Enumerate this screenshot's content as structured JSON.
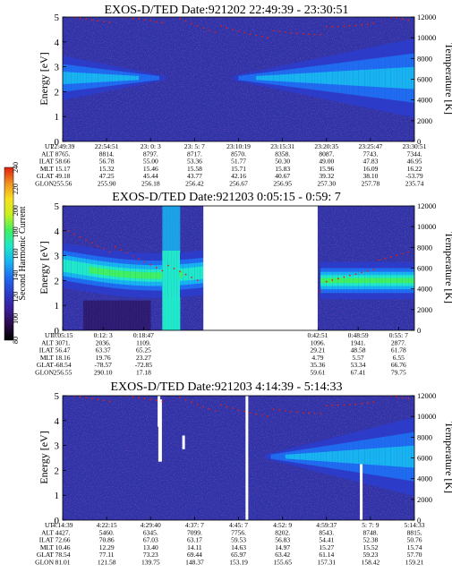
{
  "colors": {
    "background": "#2e33a8",
    "scale": [
      "#000000",
      "#2a0a4a",
      "#3b1f9a",
      "#2c3cc8",
      "#1f6cf0",
      "#18b4f0",
      "#20e8c8",
      "#40f060",
      "#c8f020",
      "#f8e020",
      "#f09020",
      "#e02010"
    ]
  },
  "colorbar": {
    "label": "Second Harmonic Current",
    "ticks": [
      "80",
      "100",
      "120",
      "140",
      "160",
      "180",
      "200",
      "220",
      "240"
    ]
  },
  "chart_data": [
    {
      "type": "heatmap",
      "title": "EXOS-D/TED   Date:921202  22:49:39 - 23:30:51",
      "ylabel": "Energy [eV]",
      "y2label": "Temperature [K]",
      "ylim": [
        0,
        5
      ],
      "y2lim": [
        0,
        12000
      ],
      "yticks": [
        "0",
        "1",
        "2",
        "3",
        "4",
        "5"
      ],
      "y2ticks": [
        "0",
        "2000",
        "4000",
        "6000",
        "8000",
        "10000",
        "12000"
      ],
      "gaps": [],
      "band": "ends",
      "ephemeris": {
        "rows": [
          "UT",
          "ALT",
          "ILAT",
          "MLT",
          "GLAT",
          "GLON"
        ],
        "columns": [
          [
            "22:49:39",
            "8765.",
            "58.66",
            "15.17",
            "49.18",
            "255.56"
          ],
          [
            "22:54:51",
            "8814.",
            "56.78",
            "15.32",
            "47.25",
            "255.90"
          ],
          [
            "23: 0: 3",
            "8797.",
            "55.00",
            "15.46",
            "45.44",
            "256.18"
          ],
          [
            "23: 5: 7",
            "8717.",
            "53.36",
            "15.58",
            "43.77",
            "256.42"
          ],
          [
            "23:10:19",
            "8570.",
            "51.77",
            "15.71",
            "42.16",
            "256.67"
          ],
          [
            "23:15:31",
            "8358.",
            "50.30",
            "15.83",
            "40.67",
            "256.95"
          ],
          [
            "23:20:35",
            "8087.",
            "49.00",
            "15.96",
            "39.32",
            "257.30"
          ],
          [
            "23:25:47",
            "7743.",
            "47.83",
            "16.09",
            "38.10",
            "257.78"
          ],
          [
            "23:30:51",
            "7344.",
            "46.95",
            "16.22",
            "-53.79",
            "235.74"
          ]
        ]
      }
    },
    {
      "type": "heatmap",
      "title": "EXOS-D/TED   Date:921203  0:05:15 - 0:59: 7",
      "ylabel": "Energy [eV]",
      "y2label": "Temperature [K]",
      "ylim": [
        0,
        5
      ],
      "y2lim": [
        0,
        12000
      ],
      "yticks": [
        "0",
        "1",
        "2",
        "3",
        "4",
        "5"
      ],
      "y2ticks": [
        "0",
        "2000",
        "4000",
        "6000",
        "8000",
        "10000",
        "12000"
      ],
      "gaps": [
        [
          0.4,
          0.725
        ]
      ],
      "band": "middle",
      "ephemeris": {
        "rows": [
          "UT",
          "ALT",
          "ILAT",
          "MLT",
          "GLAT",
          "GLON"
        ],
        "columns": [
          [
            "0:05:15",
            "3071.",
            "56.47",
            "18.16",
            "-68.54",
            "256.55"
          ],
          [
            "0:12: 3",
            "2036.",
            "63.37",
            "19.76",
            "-78.57",
            "290.10"
          ],
          [
            "0:18:47",
            "1109.",
            "65.25",
            "23.27",
            "-72.85",
            "17.18"
          ],
          [
            "0:42:51",
            "1096.",
            "29.21",
            "4.79",
            "35.36",
            "59.61"
          ],
          [
            "0:48:59",
            "1941.",
            "48.58",
            "5.57",
            "53.34",
            "67.41"
          ],
          [
            "0:55: 7",
            "2877.",
            "61.78",
            "6.55",
            "66.76",
            "79.75"
          ]
        ]
      }
    },
    {
      "type": "heatmap",
      "title": "EXOS-D/TED   Date:921203  4:14:39 - 5:14:33",
      "ylabel": "Energy [eV]",
      "y2label": "Temperature [K]",
      "ylim": [
        0,
        5
      ],
      "y2lim": [
        0,
        12000
      ],
      "yticks": [
        "0",
        "1",
        "2",
        "3",
        "4",
        "5"
      ],
      "y2ticks": [
        "0",
        "2000",
        "4000",
        "6000",
        "8000",
        "10000",
        "12000"
      ],
      "gaps": [],
      "band": "end",
      "ephemeris": {
        "rows": [
          "UT",
          "ALT",
          "ILAT",
          "MLT",
          "GLAT",
          "GLON"
        ],
        "columns": [
          [
            "4:14:39",
            "4427.",
            "72.66",
            "10.46",
            "78.54",
            "81.01"
          ],
          [
            "4:22:15",
            "5460.",
            "70.86",
            "12.29",
            "77.11",
            "121.58"
          ],
          [
            "4:29:40",
            "6345.",
            "67.03",
            "13.40",
            "73.23",
            "139.75"
          ],
          [
            "4:37: 7",
            "7099.",
            "63.17",
            "14.11",
            "69.44",
            "148.37"
          ],
          [
            "4:45: 7",
            "7756.",
            "59.53",
            "14.63",
            "65.97",
            "153.19"
          ],
          [
            "4:52: 9",
            "8202.",
            "56.83",
            "14.97",
            "63.42",
            "155.65"
          ],
          [
            "4:59:37",
            "8543.",
            "54.41",
            "15.27",
            "61.14",
            "157.31"
          ],
          [
            "5: 7: 9",
            "8748.",
            "52.38",
            "15.52",
            "59.23",
            "158.42"
          ],
          [
            "5:14:33",
            "8815.",
            "50.76",
            "15.74",
            "57.70",
            "159.21"
          ]
        ]
      }
    }
  ]
}
